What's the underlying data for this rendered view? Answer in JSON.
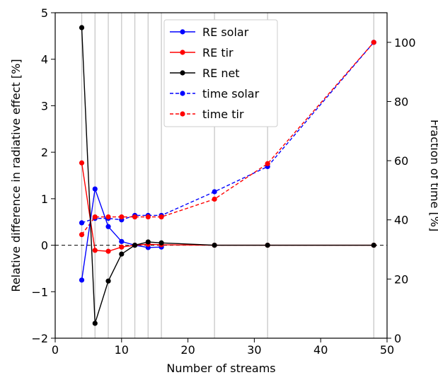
{
  "chart_data": {
    "type": "line",
    "xlabel": "Number of streams",
    "ylabel_left": "Relative difference in radiative effect [%]",
    "ylabel_right": "Fraction of time [%]",
    "xlim": [
      0,
      50
    ],
    "ylim_left": [
      -2,
      5
    ],
    "ylim_right": [
      0,
      110
    ],
    "xticks": [
      0,
      10,
      20,
      30,
      40,
      50
    ],
    "yticks_left": [
      -2,
      -1,
      0,
      1,
      2,
      3,
      4,
      5
    ],
    "yticks_right": [
      0,
      20,
      40,
      60,
      80,
      100
    ],
    "vlines": [
      4,
      6,
      8,
      10,
      12,
      14,
      16,
      24,
      32,
      48
    ],
    "hline": 0,
    "legend_position": "top-center",
    "series": [
      {
        "name": "RE solar",
        "axis": "left",
        "style": "solid",
        "color": "#0000ff",
        "x": [
          4,
          6,
          8,
          10,
          12,
          14,
          16
        ],
        "y": [
          -0.75,
          1.21,
          0.4,
          0.08,
          0.0,
          -0.05,
          -0.04
        ]
      },
      {
        "name": "RE tir",
        "axis": "left",
        "style": "solid",
        "color": "#ff0000",
        "x": [
          4,
          6,
          8,
          10,
          12,
          14,
          16,
          24,
          32,
          48
        ],
        "y": [
          1.77,
          -0.11,
          -0.13,
          -0.04,
          0.0,
          0.02,
          0.01,
          0.0,
          0.0,
          0.0
        ]
      },
      {
        "name": "RE net",
        "axis": "left",
        "style": "solid",
        "color": "#000000",
        "x": [
          4,
          6,
          8,
          10,
          12,
          14,
          16,
          24,
          32,
          48
        ],
        "y": [
          4.68,
          -1.68,
          -0.77,
          -0.19,
          0.0,
          0.07,
          0.05,
          0.0,
          0.0,
          0.0
        ]
      },
      {
        "name": "time solar",
        "axis": "right",
        "style": "dashed",
        "color": "#0000ff",
        "x": [
          4,
          6,
          8,
          10,
          12,
          14,
          16,
          24,
          32,
          48
        ],
        "y": [
          39,
          40.5,
          40.5,
          40,
          41.5,
          41.5,
          41.5,
          49.5,
          58,
          100
        ]
      },
      {
        "name": "time tir",
        "axis": "right",
        "style": "dashed",
        "color": "#ff0000",
        "x": [
          4,
          6,
          8,
          10,
          12,
          14,
          16,
          24,
          32,
          48
        ],
        "y": [
          35,
          41,
          41,
          41,
          41,
          41,
          41,
          47,
          59,
          100
        ]
      }
    ]
  }
}
